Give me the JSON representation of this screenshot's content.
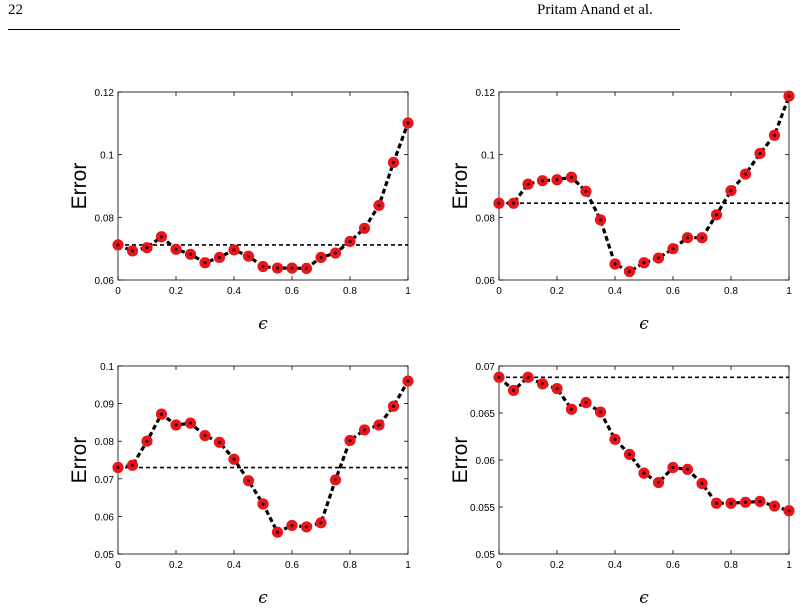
{
  "page": {
    "number": "22",
    "running_head": "Pritam Anand et al."
  },
  "chart_data": [
    {
      "type": "line",
      "xlabel": "ϵ",
      "ylabel": "Error",
      "xlim": [
        0,
        1
      ],
      "ylim": [
        0.06,
        0.12
      ],
      "xticks": [
        0,
        0.2,
        0.4,
        0.6,
        0.8,
        1
      ],
      "xtick_labels": [
        "0",
        "0.2",
        "0.4",
        "0.6",
        "0.8",
        "1"
      ],
      "yticks": [
        0.06,
        0.08,
        0.1,
        0.12
      ],
      "ytick_labels": [
        "0.06",
        "0.08",
        "0.1",
        "0.12"
      ],
      "reference_line": 0.0712,
      "x": [
        0,
        0.05,
        0.1,
        0.15,
        0.2,
        0.25,
        0.3,
        0.35,
        0.4,
        0.45,
        0.5,
        0.55,
        0.6,
        0.65,
        0.7,
        0.75,
        0.8,
        0.85,
        0.9,
        0.95,
        1
      ],
      "values": [
        0.0712,
        0.0693,
        0.0703,
        0.0738,
        0.0698,
        0.0682,
        0.0655,
        0.0672,
        0.0696,
        0.0676,
        0.0643,
        0.0638,
        0.0638,
        0.0637,
        0.0672,
        0.0686,
        0.0723,
        0.0765,
        0.0838,
        0.0975,
        0.1101
      ],
      "grid": false
    },
    {
      "type": "line",
      "xlabel": "ϵ",
      "ylabel": "Error",
      "xlim": [
        0,
        1
      ],
      "ylim": [
        0.06,
        0.12
      ],
      "xticks": [
        0,
        0.2,
        0.4,
        0.6,
        0.8,
        1
      ],
      "xtick_labels": [
        "0",
        "0.2",
        "0.4",
        "0.6",
        "0.8",
        "1"
      ],
      "yticks": [
        0.06,
        0.08,
        0.1,
        0.12
      ],
      "ytick_labels": [
        "0.06",
        "0.08",
        "0.1",
        "0.12"
      ],
      "reference_line": 0.0845,
      "x": [
        0,
        0.05,
        0.1,
        0.15,
        0.2,
        0.25,
        0.3,
        0.35,
        0.4,
        0.45,
        0.5,
        0.55,
        0.6,
        0.65,
        0.7,
        0.75,
        0.8,
        0.85,
        0.9,
        0.95,
        1
      ],
      "values": [
        0.0845,
        0.0845,
        0.0906,
        0.0917,
        0.092,
        0.0928,
        0.0883,
        0.0792,
        0.0651,
        0.0627,
        0.0655,
        0.067,
        0.07,
        0.0735,
        0.0735,
        0.0808,
        0.0885,
        0.0938,
        0.1004,
        0.1062,
        0.1187
      ],
      "grid": false
    },
    {
      "type": "line",
      "xlabel": "ϵ",
      "ylabel": "Error",
      "xlim": [
        0,
        1
      ],
      "ylim": [
        0.05,
        0.1
      ],
      "xticks": [
        0,
        0.2,
        0.4,
        0.6,
        0.8,
        1
      ],
      "xtick_labels": [
        "0",
        "0.2",
        "0.4",
        "0.6",
        "0.8",
        "1"
      ],
      "yticks": [
        0.05,
        0.06,
        0.07,
        0.08,
        0.09,
        0.1
      ],
      "ytick_labels": [
        "0.05",
        "0.06",
        "0.07",
        "0.08",
        "0.09",
        "0.1"
      ],
      "reference_line": 0.073,
      "x": [
        0,
        0.05,
        0.1,
        0.15,
        0.2,
        0.25,
        0.3,
        0.35,
        0.4,
        0.45,
        0.5,
        0.55,
        0.6,
        0.65,
        0.7,
        0.75,
        0.8,
        0.85,
        0.9,
        0.95,
        1
      ],
      "values": [
        0.073,
        0.0736,
        0.08,
        0.0872,
        0.0843,
        0.0848,
        0.0815,
        0.0797,
        0.0752,
        0.0695,
        0.0633,
        0.0558,
        0.0576,
        0.0572,
        0.0583,
        0.0697,
        0.0802,
        0.083,
        0.0843,
        0.0893,
        0.096
      ],
      "grid": false
    },
    {
      "type": "line",
      "xlabel": "ϵ",
      "ylabel": "Error",
      "xlim": [
        0,
        1
      ],
      "ylim": [
        0.05,
        0.07
      ],
      "xticks": [
        0,
        0.2,
        0.4,
        0.6,
        0.8,
        1
      ],
      "xtick_labels": [
        "0",
        "0.2",
        "0.4",
        "0.6",
        "0.8",
        "1"
      ],
      "yticks": [
        0.05,
        0.055,
        0.06,
        0.065,
        0.07
      ],
      "ytick_labels": [
        "0.05",
        "0.055",
        "0.06",
        "0.065",
        "0.07"
      ],
      "reference_line": 0.0688,
      "x": [
        0,
        0.05,
        0.1,
        0.15,
        0.2,
        0.25,
        0.3,
        0.35,
        0.4,
        0.45,
        0.5,
        0.55,
        0.6,
        0.65,
        0.7,
        0.75,
        0.8,
        0.85,
        0.9,
        0.95,
        1
      ],
      "values": [
        0.0688,
        0.0674,
        0.0688,
        0.0681,
        0.0676,
        0.0654,
        0.0661,
        0.0651,
        0.0622,
        0.0606,
        0.0586,
        0.0576,
        0.0592,
        0.059,
        0.0575,
        0.0554,
        0.0554,
        0.0555,
        0.0556,
        0.0551,
        0.0546
      ],
      "grid": false
    }
  ],
  "colors": {
    "marker_fill": "#e8161b",
    "marker_center": "#3a0000",
    "line": "#000000"
  }
}
